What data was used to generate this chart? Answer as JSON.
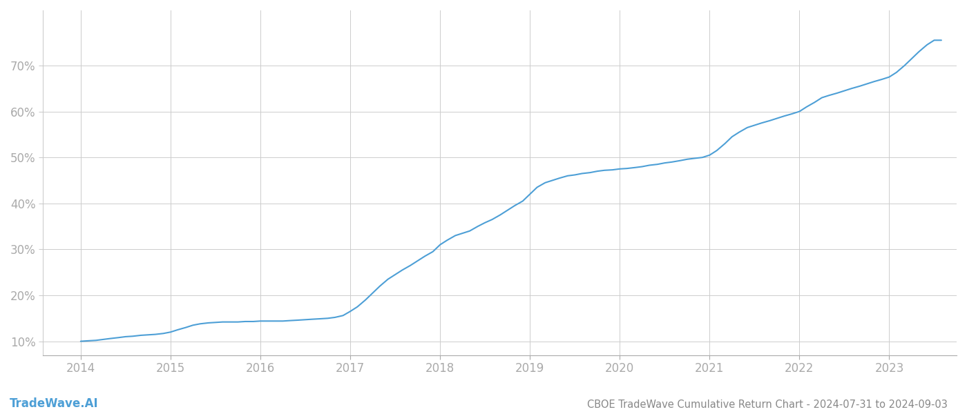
{
  "title": "CBOE TradeWave Cumulative Return Chart - 2024-07-31 to 2024-09-03",
  "watermark": "TradeWave.AI",
  "line_color": "#4d9fd6",
  "background_color": "#ffffff",
  "grid_color": "#cccccc",
  "x_years": [
    2014,
    2015,
    2016,
    2017,
    2018,
    2019,
    2020,
    2021,
    2022,
    2023
  ],
  "x_data": [
    2014.0,
    2014.08,
    2014.17,
    2014.25,
    2014.33,
    2014.42,
    2014.5,
    2014.58,
    2014.67,
    2014.75,
    2014.83,
    2014.92,
    2015.0,
    2015.08,
    2015.17,
    2015.25,
    2015.33,
    2015.42,
    2015.5,
    2015.58,
    2015.67,
    2015.75,
    2015.83,
    2015.92,
    2016.0,
    2016.08,
    2016.17,
    2016.25,
    2016.33,
    2016.42,
    2016.5,
    2016.58,
    2016.67,
    2016.75,
    2016.83,
    2016.92,
    2017.0,
    2017.08,
    2017.17,
    2017.25,
    2017.33,
    2017.42,
    2017.5,
    2017.58,
    2017.67,
    2017.75,
    2017.83,
    2017.92,
    2018.0,
    2018.08,
    2018.17,
    2018.25,
    2018.33,
    2018.42,
    2018.5,
    2018.58,
    2018.67,
    2018.75,
    2018.83,
    2018.92,
    2019.0,
    2019.08,
    2019.17,
    2019.25,
    2019.33,
    2019.42,
    2019.5,
    2019.58,
    2019.67,
    2019.75,
    2019.83,
    2019.92,
    2020.0,
    2020.08,
    2020.17,
    2020.25,
    2020.33,
    2020.42,
    2020.5,
    2020.58,
    2020.67,
    2020.75,
    2020.83,
    2020.92,
    2021.0,
    2021.08,
    2021.17,
    2021.25,
    2021.33,
    2021.42,
    2021.5,
    2021.58,
    2021.67,
    2021.75,
    2021.83,
    2021.92,
    2022.0,
    2022.08,
    2022.17,
    2022.25,
    2022.33,
    2022.42,
    2022.5,
    2022.58,
    2022.67,
    2022.75,
    2022.83,
    2022.92,
    2023.0,
    2023.08,
    2023.17,
    2023.25,
    2023.33,
    2023.42,
    2023.5,
    2023.58
  ],
  "y_data": [
    10.0,
    10.1,
    10.2,
    10.4,
    10.6,
    10.8,
    11.0,
    11.1,
    11.3,
    11.4,
    11.5,
    11.7,
    12.0,
    12.5,
    13.0,
    13.5,
    13.8,
    14.0,
    14.1,
    14.2,
    14.2,
    14.2,
    14.3,
    14.3,
    14.4,
    14.4,
    14.4,
    14.4,
    14.5,
    14.6,
    14.7,
    14.8,
    14.9,
    15.0,
    15.2,
    15.6,
    16.5,
    17.5,
    19.0,
    20.5,
    22.0,
    23.5,
    24.5,
    25.5,
    26.5,
    27.5,
    28.5,
    29.5,
    31.0,
    32.0,
    33.0,
    33.5,
    34.0,
    35.0,
    35.8,
    36.5,
    37.5,
    38.5,
    39.5,
    40.5,
    42.0,
    43.5,
    44.5,
    45.0,
    45.5,
    46.0,
    46.2,
    46.5,
    46.7,
    47.0,
    47.2,
    47.3,
    47.5,
    47.6,
    47.8,
    48.0,
    48.3,
    48.5,
    48.8,
    49.0,
    49.3,
    49.6,
    49.8,
    50.0,
    50.5,
    51.5,
    53.0,
    54.5,
    55.5,
    56.5,
    57.0,
    57.5,
    58.0,
    58.5,
    59.0,
    59.5,
    60.0,
    61.0,
    62.0,
    63.0,
    63.5,
    64.0,
    64.5,
    65.0,
    65.5,
    66.0,
    66.5,
    67.0,
    67.5,
    68.5,
    70.0,
    71.5,
    73.0,
    74.5,
    75.5,
    75.5
  ],
  "yticks": [
    10,
    20,
    30,
    40,
    50,
    60,
    70
  ],
  "ylim": [
    7,
    82
  ],
  "xlim": [
    2013.58,
    2023.75
  ],
  "tick_label_color": "#aaaaaa",
  "title_color": "#888888",
  "watermark_color": "#4d9fd6",
  "title_fontsize": 10.5,
  "tick_fontsize": 12,
  "watermark_fontsize": 12
}
